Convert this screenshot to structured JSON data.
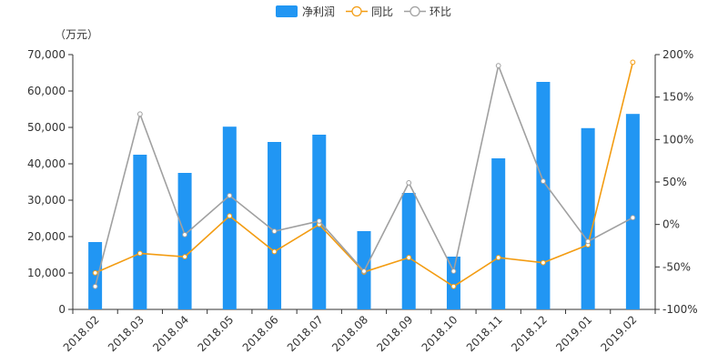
{
  "chart_data": {
    "type": "bar",
    "title": "",
    "y_unit_label": "（万元）",
    "categories": [
      "2018.02",
      "2018.03",
      "2018.04",
      "2018.05",
      "2018.06",
      "2018.07",
      "2018.08",
      "2018.09",
      "2018.10",
      "2018.11",
      "2018.12",
      "2019.01",
      "2019.02"
    ],
    "series": [
      {
        "name": "净利润",
        "type": "bar",
        "axis": "left",
        "color": "#2196f3",
        "values": [
          18500,
          42500,
          37500,
          50200,
          46000,
          48000,
          21500,
          32000,
          14500,
          41500,
          62500,
          49800,
          53700
        ]
      },
      {
        "name": "同比",
        "type": "line",
        "axis": "right",
        "color": "#f39c12",
        "values": [
          -57,
          -34,
          -38,
          10,
          -32,
          0,
          -56,
          -39,
          -73,
          -39,
          -45,
          -24,
          191
        ]
      },
      {
        "name": "环比",
        "type": "line",
        "axis": "right",
        "color": "#a0a0a0",
        "values": [
          -73,
          130,
          -12,
          34,
          -8,
          4,
          -55,
          49,
          -55,
          187,
          51,
          -20,
          8
        ]
      }
    ],
    "y_left": {
      "min": 0,
      "max": 70000,
      "ticks": [
        0,
        10000,
        20000,
        30000,
        40000,
        50000,
        60000,
        70000
      ],
      "tick_labels": [
        "0",
        "10,000",
        "20,000",
        "30,000",
        "40,000",
        "50,000",
        "60,000",
        "70,000"
      ]
    },
    "y_right": {
      "min": -100,
      "max": 200,
      "ticks": [
        -100,
        -50,
        0,
        50,
        100,
        150,
        200
      ],
      "tick_labels": [
        "-100%",
        "-50%",
        "0%",
        "50%",
        "100%",
        "150%",
        "200%"
      ]
    },
    "legend_position": "top-center",
    "grid": false
  }
}
